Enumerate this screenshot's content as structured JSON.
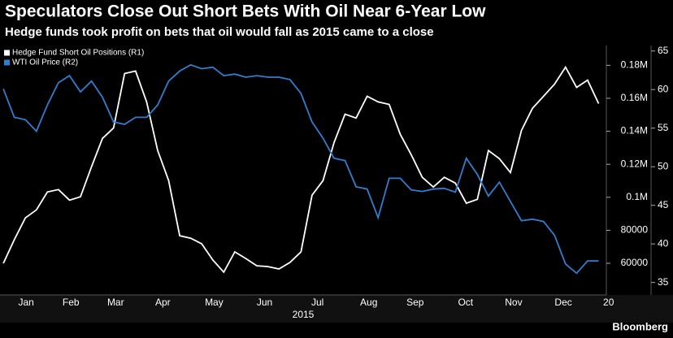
{
  "chart_data": {
    "type": "line",
    "title": "Speculators Close Out Short Bets With Oil Near 6-Year Low",
    "subtitle": "Hedge funds took profit on bets that oil would fall as 2015 came to a close",
    "x_label": "2015",
    "source": "Bloomberg",
    "x": [
      0,
      1,
      2,
      3,
      4,
      5,
      6,
      7,
      8,
      9,
      10,
      11,
      12,
      13,
      14,
      15,
      16,
      17,
      18,
      19,
      20,
      21,
      22,
      23,
      24,
      25,
      26,
      27,
      28,
      29,
      30,
      31,
      32,
      33,
      34,
      35,
      36,
      37,
      38,
      39,
      40,
      41,
      42,
      43,
      44,
      45,
      46,
      47,
      48,
      49,
      50,
      51,
      52,
      53,
      54
    ],
    "xlim": [
      -0.3,
      54.7
    ],
    "xticks": [
      {
        "value": 2.07,
        "label": "Jan"
      },
      {
        "value": 6.13,
        "label": "Feb"
      },
      {
        "value": 10.19,
        "label": "Mar"
      },
      {
        "value": 14.47,
        "label": "Apr"
      },
      {
        "value": 19.12,
        "label": "May"
      },
      {
        "value": 23.7,
        "label": "Jun"
      },
      {
        "value": 28.5,
        "label": "Jul"
      },
      {
        "value": 33.15,
        "label": "Aug"
      },
      {
        "value": 37.36,
        "label": "Sep"
      },
      {
        "value": 41.93,
        "label": "Oct"
      },
      {
        "value": 46.29,
        "label": "Nov"
      },
      {
        "value": 50.8,
        "label": "Dec"
      },
      {
        "value": 54.9,
        "label": "20"
      }
    ],
    "ylim": [
      42300,
      191000
    ],
    "yticks": [
      60000,
      80000,
      {
        "value": 100000,
        "label": "0.1M"
      },
      {
        "value": 120000,
        "label": "0.12M"
      },
      {
        "value": 140000,
        "label": "0.14M"
      },
      {
        "value": 160000,
        "label": "0.16M"
      },
      {
        "value": 180000,
        "label": "0.18M"
      }
    ],
    "y2lim": [
      33.7,
      65.5
    ],
    "y2ticks": [
      35,
      40,
      45,
      50,
      55,
      60,
      65
    ],
    "series": [
      {
        "name": "Hedge Fund Short Oil Positions (R1)",
        "color": "#ffffff",
        "axis": "y",
        "values": [
          60000,
          74300,
          87500,
          92400,
          103200,
          104700,
          98300,
          100300,
          118500,
          135700,
          142000,
          175000,
          176500,
          157800,
          128300,
          110100,
          76700,
          75200,
          71800,
          62000,
          54600,
          66900,
          62900,
          58500,
          58000,
          56600,
          60500,
          66900,
          101300,
          110100,
          133200,
          150400,
          148000,
          161200,
          157800,
          156300,
          138200,
          125800,
          112100,
          106200,
          112100,
          108600,
          96400,
          98800,
          128300,
          123400,
          115000,
          140600,
          153900,
          161200,
          168600,
          178900,
          166600,
          171000,
          156800
        ]
      },
      {
        "name": "WTI Oil Price (R2)",
        "color": "#2f7fd0",
        "axis": "y2",
        "values": [
          60.1,
          56.4,
          56.1,
          54.6,
          58.0,
          60.9,
          61.8,
          59.7,
          61.1,
          59.0,
          55.8,
          55.5,
          56.4,
          56.4,
          58.0,
          61.1,
          62.4,
          63.2,
          62.7,
          62.9,
          61.8,
          62.0,
          61.6,
          61.8,
          61.6,
          61.6,
          61.3,
          59.5,
          55.8,
          53.7,
          51.1,
          50.8,
          47.4,
          47.1,
          43.4,
          48.5,
          48.5,
          47.0,
          46.8,
          47.1,
          47.2,
          46.7,
          51.1,
          49.0,
          46.2,
          48.0,
          45.5,
          43.0,
          43.2,
          42.9,
          41.1,
          37.4,
          36.2,
          37.8,
          37.8
        ]
      }
    ]
  }
}
